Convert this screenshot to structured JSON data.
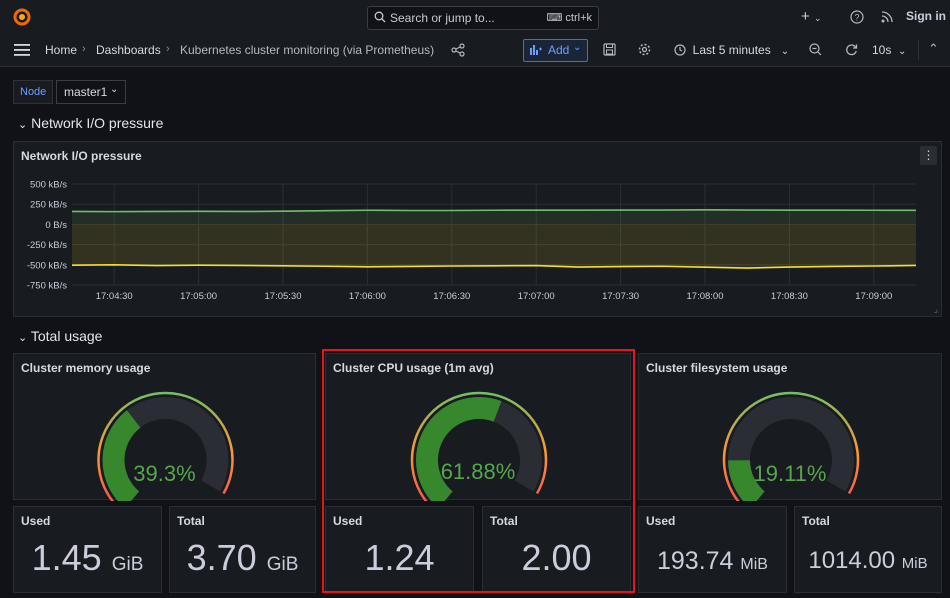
{
  "topbar": {
    "search_placeholder": "Search or jump to...",
    "search_shortcut": "ctrl+k",
    "plus_label": "+",
    "signin_label": "Sign in"
  },
  "breadcrumb": {
    "home": "Home",
    "dashboards": "Dashboards",
    "current": "Kubernetes cluster monitoring (via Prometheus)"
  },
  "toolbar": {
    "add_label": "Add",
    "time_range": "Last 5 minutes",
    "refresh_interval": "10s"
  },
  "variables": {
    "node_label": "Node",
    "node_value": "master1"
  },
  "rows": {
    "network_title": "Network I/O pressure",
    "total_title": "Total usage"
  },
  "network_panel": {
    "title": "Network I/O pressure",
    "y_ticks": [
      "500 kB/s",
      "250 kB/s",
      "0 B/s",
      "-250 kB/s",
      "-500 kB/s",
      "-750 kB/s"
    ],
    "x_ticks": [
      "17:04:30",
      "17:05:00",
      "17:05:30",
      "17:06:00",
      "17:06:30",
      "17:07:00",
      "17:07:30",
      "17:08:00",
      "17:08:30",
      "17:09:00"
    ]
  },
  "chart_data": {
    "type": "area",
    "title": "Network I/O pressure",
    "ylim": [
      -750,
      500
    ],
    "y_unit": "kB/s",
    "x": [
      "17:04:15",
      "17:04:30",
      "17:04:45",
      "17:05:00",
      "17:05:15",
      "17:05:30",
      "17:05:45",
      "17:06:00",
      "17:06:15",
      "17:06:30",
      "17:06:45",
      "17:07:00",
      "17:07:15",
      "17:07:30",
      "17:07:45",
      "17:08:00",
      "17:08:15",
      "17:08:30",
      "17:08:45",
      "17:09:00",
      "17:09:15"
    ],
    "series": [
      {
        "color": "#73bf69",
        "values": [
          160,
          158,
          160,
          162,
          160,
          163,
          170,
          175,
          172,
          172,
          175,
          176,
          176,
          178,
          178,
          180,
          178,
          176,
          176,
          175,
          174
        ]
      },
      {
        "color": "#fade2a",
        "values": [
          -505,
          -500,
          -510,
          -505,
          -508,
          -512,
          -518,
          -525,
          -520,
          -515,
          -512,
          -510,
          -528,
          -522,
          -518,
          -530,
          -540,
          -528,
          -520,
          -515,
          -508
        ]
      }
    ],
    "grid": true,
    "legend": "none"
  },
  "gauges": [
    {
      "title": "Cluster memory usage",
      "value_text": "39.3%",
      "value": 39.3
    },
    {
      "title": "Cluster CPU usage (1m avg)",
      "value_text": "61.88%",
      "value": 61.88
    },
    {
      "title": "Cluster filesystem usage",
      "value_text": "19.11%",
      "value": 19.11
    }
  ],
  "stats": {
    "mem_used": {
      "title": "Used",
      "value": "1.45",
      "unit": "GiB"
    },
    "mem_total": {
      "title": "Total",
      "value": "3.70",
      "unit": "GiB"
    },
    "cpu_used": {
      "title": "Used",
      "value": "1.24"
    },
    "cpu_total": {
      "title": "Total",
      "value": "2.00"
    },
    "fs_used": {
      "title": "Used",
      "value": "193.74",
      "unit": "MiB"
    },
    "fs_total": {
      "title": "Total",
      "value": "1014.00",
      "unit": "MiB"
    }
  },
  "colors": {
    "gauge_fill": "#37872d",
    "gauge_value_text": "#56a64b",
    "highlight": "#e0181a",
    "accent_blue": "#6e9fff"
  }
}
